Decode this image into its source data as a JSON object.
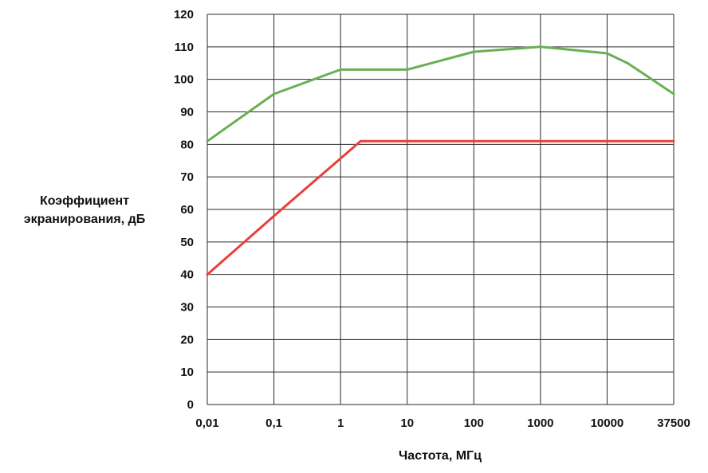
{
  "chart_data": {
    "type": "line",
    "ylabel_lines": [
      "Коэффициент",
      "экранирования, дБ"
    ],
    "xlabel": "Частота, МГц",
    "x_scale": "log",
    "x_ticks": [
      {
        "value": 0.01,
        "label": "0,01"
      },
      {
        "value": 0.1,
        "label": "0,1"
      },
      {
        "value": 1,
        "label": "1"
      },
      {
        "value": 10,
        "label": "10"
      },
      {
        "value": 100,
        "label": "100"
      },
      {
        "value": 1000,
        "label": "1000"
      },
      {
        "value": 10000,
        "label": "10000"
      },
      {
        "value": 37500,
        "label": "37500"
      }
    ],
    "y_ticks": [
      0,
      10,
      20,
      30,
      40,
      50,
      60,
      70,
      80,
      90,
      100,
      110,
      120
    ],
    "ylim": [
      0,
      120
    ],
    "xlim": [
      0.01,
      37500
    ],
    "grid": true,
    "series": [
      {
        "color": "#6aaf53",
        "points": [
          [
            0.01,
            81
          ],
          [
            0.1,
            95.5
          ],
          [
            1,
            103
          ],
          [
            10,
            103
          ],
          [
            100,
            108.5
          ],
          [
            1000,
            110
          ],
          [
            10000,
            108
          ],
          [
            15000,
            105
          ],
          [
            37500,
            95.5
          ]
        ]
      },
      {
        "color": "#e8403a",
        "points": [
          [
            0.01,
            40
          ],
          [
            0.1,
            58
          ],
          [
            2,
            81
          ],
          [
            37500,
            81
          ]
        ]
      }
    ]
  }
}
